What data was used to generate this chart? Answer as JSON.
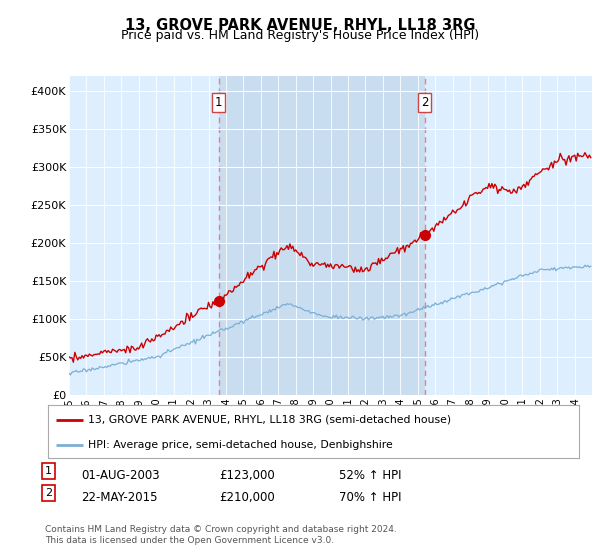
{
  "title": "13, GROVE PARK AVENUE, RHYL, LL18 3RG",
  "subtitle": "Price paid vs. HM Land Registry's House Price Index (HPI)",
  "ylim": [
    0,
    420000
  ],
  "yticks": [
    0,
    50000,
    100000,
    150000,
    200000,
    250000,
    300000,
    350000,
    400000
  ],
  "ytick_labels": [
    "£0",
    "£50K",
    "£100K",
    "£150K",
    "£200K",
    "£250K",
    "£300K",
    "£350K",
    "£400K"
  ],
  "sale1_year": 2003.583,
  "sale1_price": 123000,
  "sale2_year": 2015.389,
  "sale2_price": 210000,
  "red_line_color": "#cc0000",
  "blue_line_color": "#7bafd4",
  "vline_color": "#e88080",
  "plot_bg_color": "#ddeeff",
  "shaded_bg_color": "#c8ddf0",
  "legend_label_red": "13, GROVE PARK AVENUE, RHYL, LL18 3RG (semi-detached house)",
  "legend_label_blue": "HPI: Average price, semi-detached house, Denbighshire",
  "footnote": "Contains HM Land Registry data © Crown copyright and database right 2024.\nThis data is licensed under the Open Government Licence v3.0."
}
